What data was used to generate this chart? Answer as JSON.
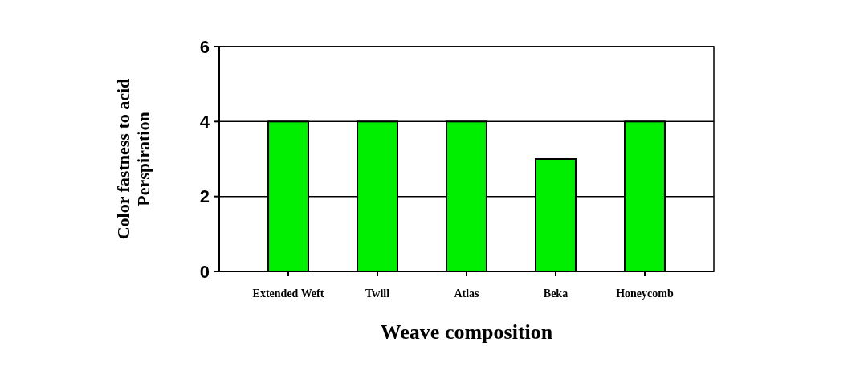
{
  "chart_data": {
    "type": "bar",
    "xlabel": "Weave composition",
    "ylabel": "Color fastness to acid\nPerspiration",
    "categories": [
      "Extended Weft",
      "Twill",
      "Atlas",
      "Beka",
      "Honeycomb"
    ],
    "values": [
      4,
      4,
      4,
      3,
      4
    ],
    "color": "#00ee00",
    "ylim": [
      0,
      6
    ],
    "yticks": [
      0,
      2,
      4,
      6
    ],
    "grid": "y"
  }
}
